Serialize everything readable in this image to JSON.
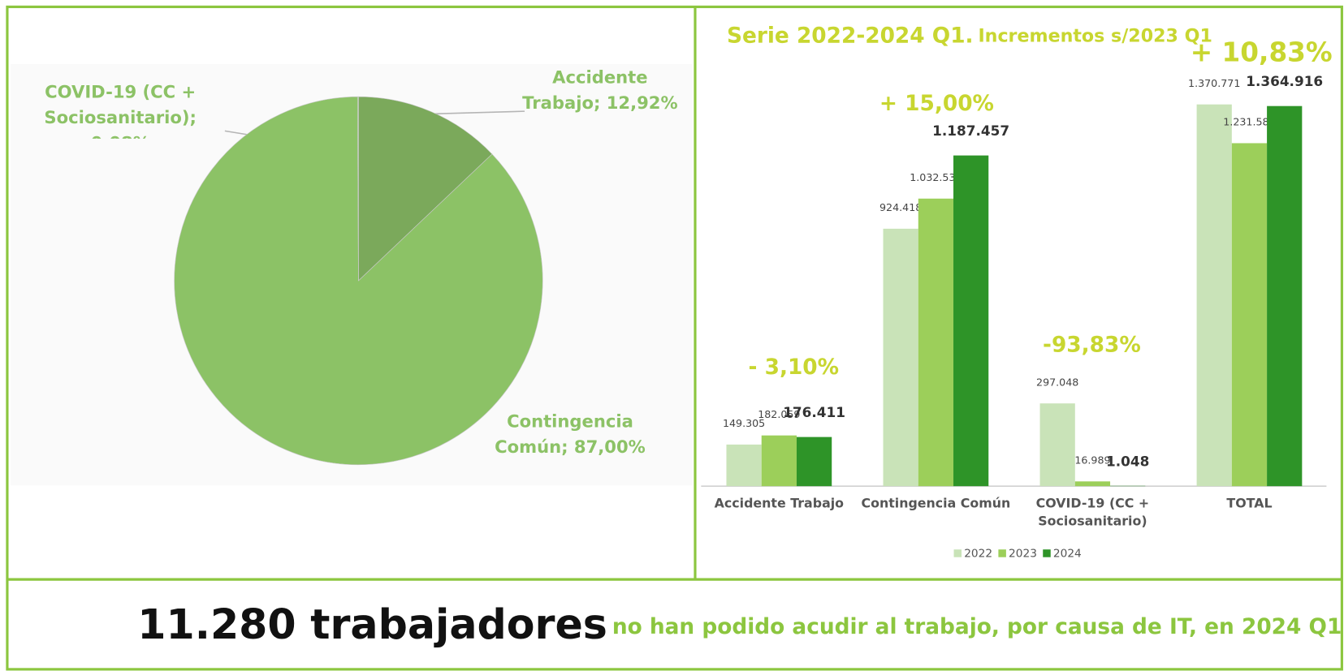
{
  "chart_data": [
    {
      "type": "pie",
      "categories": [
        "Accidente Trabajo",
        "Contingencia Común",
        "COVID-19 (CC + Sociosanitario)"
      ],
      "values": [
        12.92,
        87.0,
        0.08
      ],
      "value_labels": [
        "Accidente Trabajo; 12,92%",
        "Contingencia Común; 87,00%",
        "COVID-19 (CC + Sociosanitario); 0,08%"
      ],
      "colors": [
        "#7ba95b",
        "#8cc266",
        "#a3d184"
      ]
    },
    {
      "type": "bar",
      "title": "Serie 2022-2024 Q1.",
      "subtitle": "Incrementos s/2023 Q1",
      "categories": [
        "Accidente Trabajo",
        "Contingencia Común",
        "COVID-19 (CC + Sociosanitario)",
        "TOTAL"
      ],
      "series": [
        {
          "name": "2022",
          "color": "#c9e3b8",
          "values": [
            149305,
            924418,
            297048,
            1370771
          ],
          "value_labels": [
            "149.305",
            "924.418",
            "297.048",
            "1.370.771"
          ]
        },
        {
          "name": "2023",
          "color": "#9ccf5a",
          "values": [
            182059,
            1032532,
            16989,
            1231580
          ],
          "value_labels": [
            "182.059",
            "1.032.532",
            "16.989",
            "1.231.580"
          ]
        },
        {
          "name": "2024",
          "color": "#2e9428",
          "values": [
            176411,
            1187457,
            1048,
            1364916
          ],
          "value_labels": [
            "176.411",
            "1.187.457",
            "1.048",
            "1.364.916"
          ]
        }
      ],
      "annotations": [
        "- 3,10%",
        "+ 15,00%",
        "-93,83%",
        "+ 10,83%"
      ]
    }
  ],
  "footer": {
    "headline": "11.280 trabajadores",
    "text": "no han podido acudir al trabajo, por causa de IT, en 2024 Q1"
  }
}
